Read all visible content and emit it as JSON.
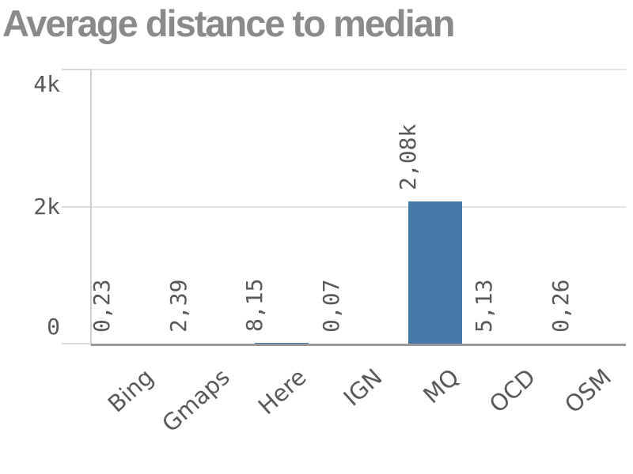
{
  "title": "Average distance to median",
  "colors": {
    "background": "#ffffff",
    "title_text": "#8a8a8a",
    "axis_text": "#595959",
    "bar": "#4678a8",
    "gridline": "#e2e2e2",
    "tick": "#d9d9d9",
    "axis_line": "#cfcfcf",
    "baseline": "#999999"
  },
  "chart_data": {
    "type": "bar",
    "title": "Average distance to median",
    "categories": [
      "Bing",
      "Gmaps",
      "Here",
      "IGN",
      "MQ",
      "OCD",
      "OSM"
    ],
    "values": [
      0.23,
      2.39,
      8.15,
      0.07,
      2080,
      5.13,
      0.26
    ],
    "bar_labels": [
      "0,23",
      "2,39",
      "8,15",
      "0,07",
      "2,08k",
      "5,13",
      "0,26"
    ],
    "xlabel": "",
    "ylabel": "",
    "ylim": [
      0,
      4000
    ],
    "yticks": [
      {
        "value": 0,
        "label": "0"
      },
      {
        "value": 2000,
        "label": "2k"
      },
      {
        "value": 4000,
        "label": "4k"
      }
    ],
    "grid": true,
    "legend_position": "none",
    "bar_label_rotation": -90,
    "x_label_rotation": -42
  }
}
